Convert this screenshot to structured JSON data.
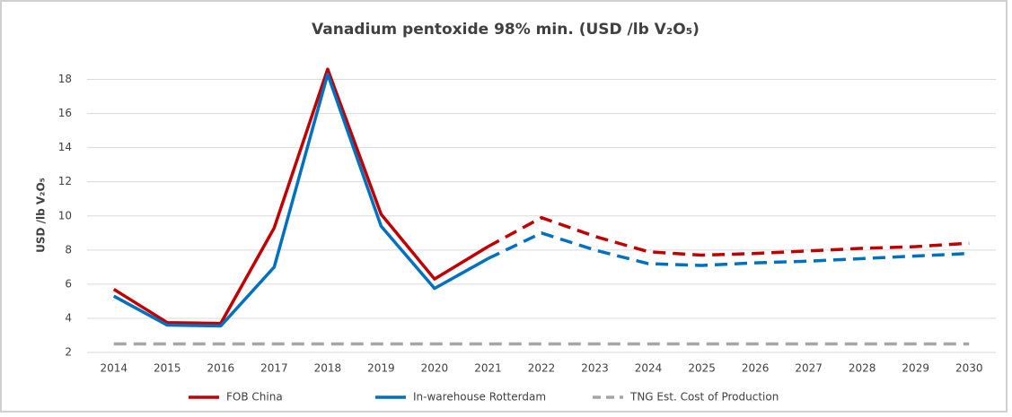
{
  "chart_data": {
    "type": "line",
    "title": "Vanadium pentoxide 98% min. (USD /lb V₂O₅)",
    "y_label": "USD /lb V₂O₅",
    "categories": [
      "2014",
      "2015",
      "2016",
      "2017",
      "2018",
      "2019",
      "2020",
      "2021",
      "2022",
      "2023",
      "2024",
      "2025",
      "2026",
      "2027",
      "2028",
      "2029",
      "2030"
    ],
    "series": [
      {
        "name": "FOB China",
        "color": "#c00000",
        "dashed_from": "2021",
        "values": [
          5.7,
          3.75,
          3.7,
          9.3,
          18.6,
          10.1,
          6.3,
          8.2,
          9.9,
          8.8,
          7.9,
          7.7,
          7.8,
          7.95,
          8.1,
          8.2,
          8.4
        ]
      },
      {
        "name": "In-warehouse Rotterdam",
        "color": "#0070c0",
        "dashed_from": "2021",
        "values": [
          5.3,
          3.6,
          3.55,
          7.0,
          18.3,
          9.4,
          5.75,
          7.5,
          9.0,
          8.0,
          7.2,
          7.1,
          7.25,
          7.35,
          7.5,
          7.65,
          7.8
        ]
      },
      {
        "name": "TNG Est. Cost of Production",
        "color": "#a6a6a6",
        "dashed_from": "2014",
        "values": [
          2.5,
          2.5,
          2.5,
          2.5,
          2.5,
          2.5,
          2.5,
          2.5,
          2.5,
          2.5,
          2.5,
          2.5,
          2.5,
          2.5,
          2.5,
          2.5,
          2.5
        ]
      }
    ],
    "ylim": [
      2,
      19.5
    ],
    "yticks": [
      2,
      4,
      6,
      8,
      10,
      12,
      14,
      16,
      18
    ],
    "grid": true,
    "legend": "bottom"
  }
}
